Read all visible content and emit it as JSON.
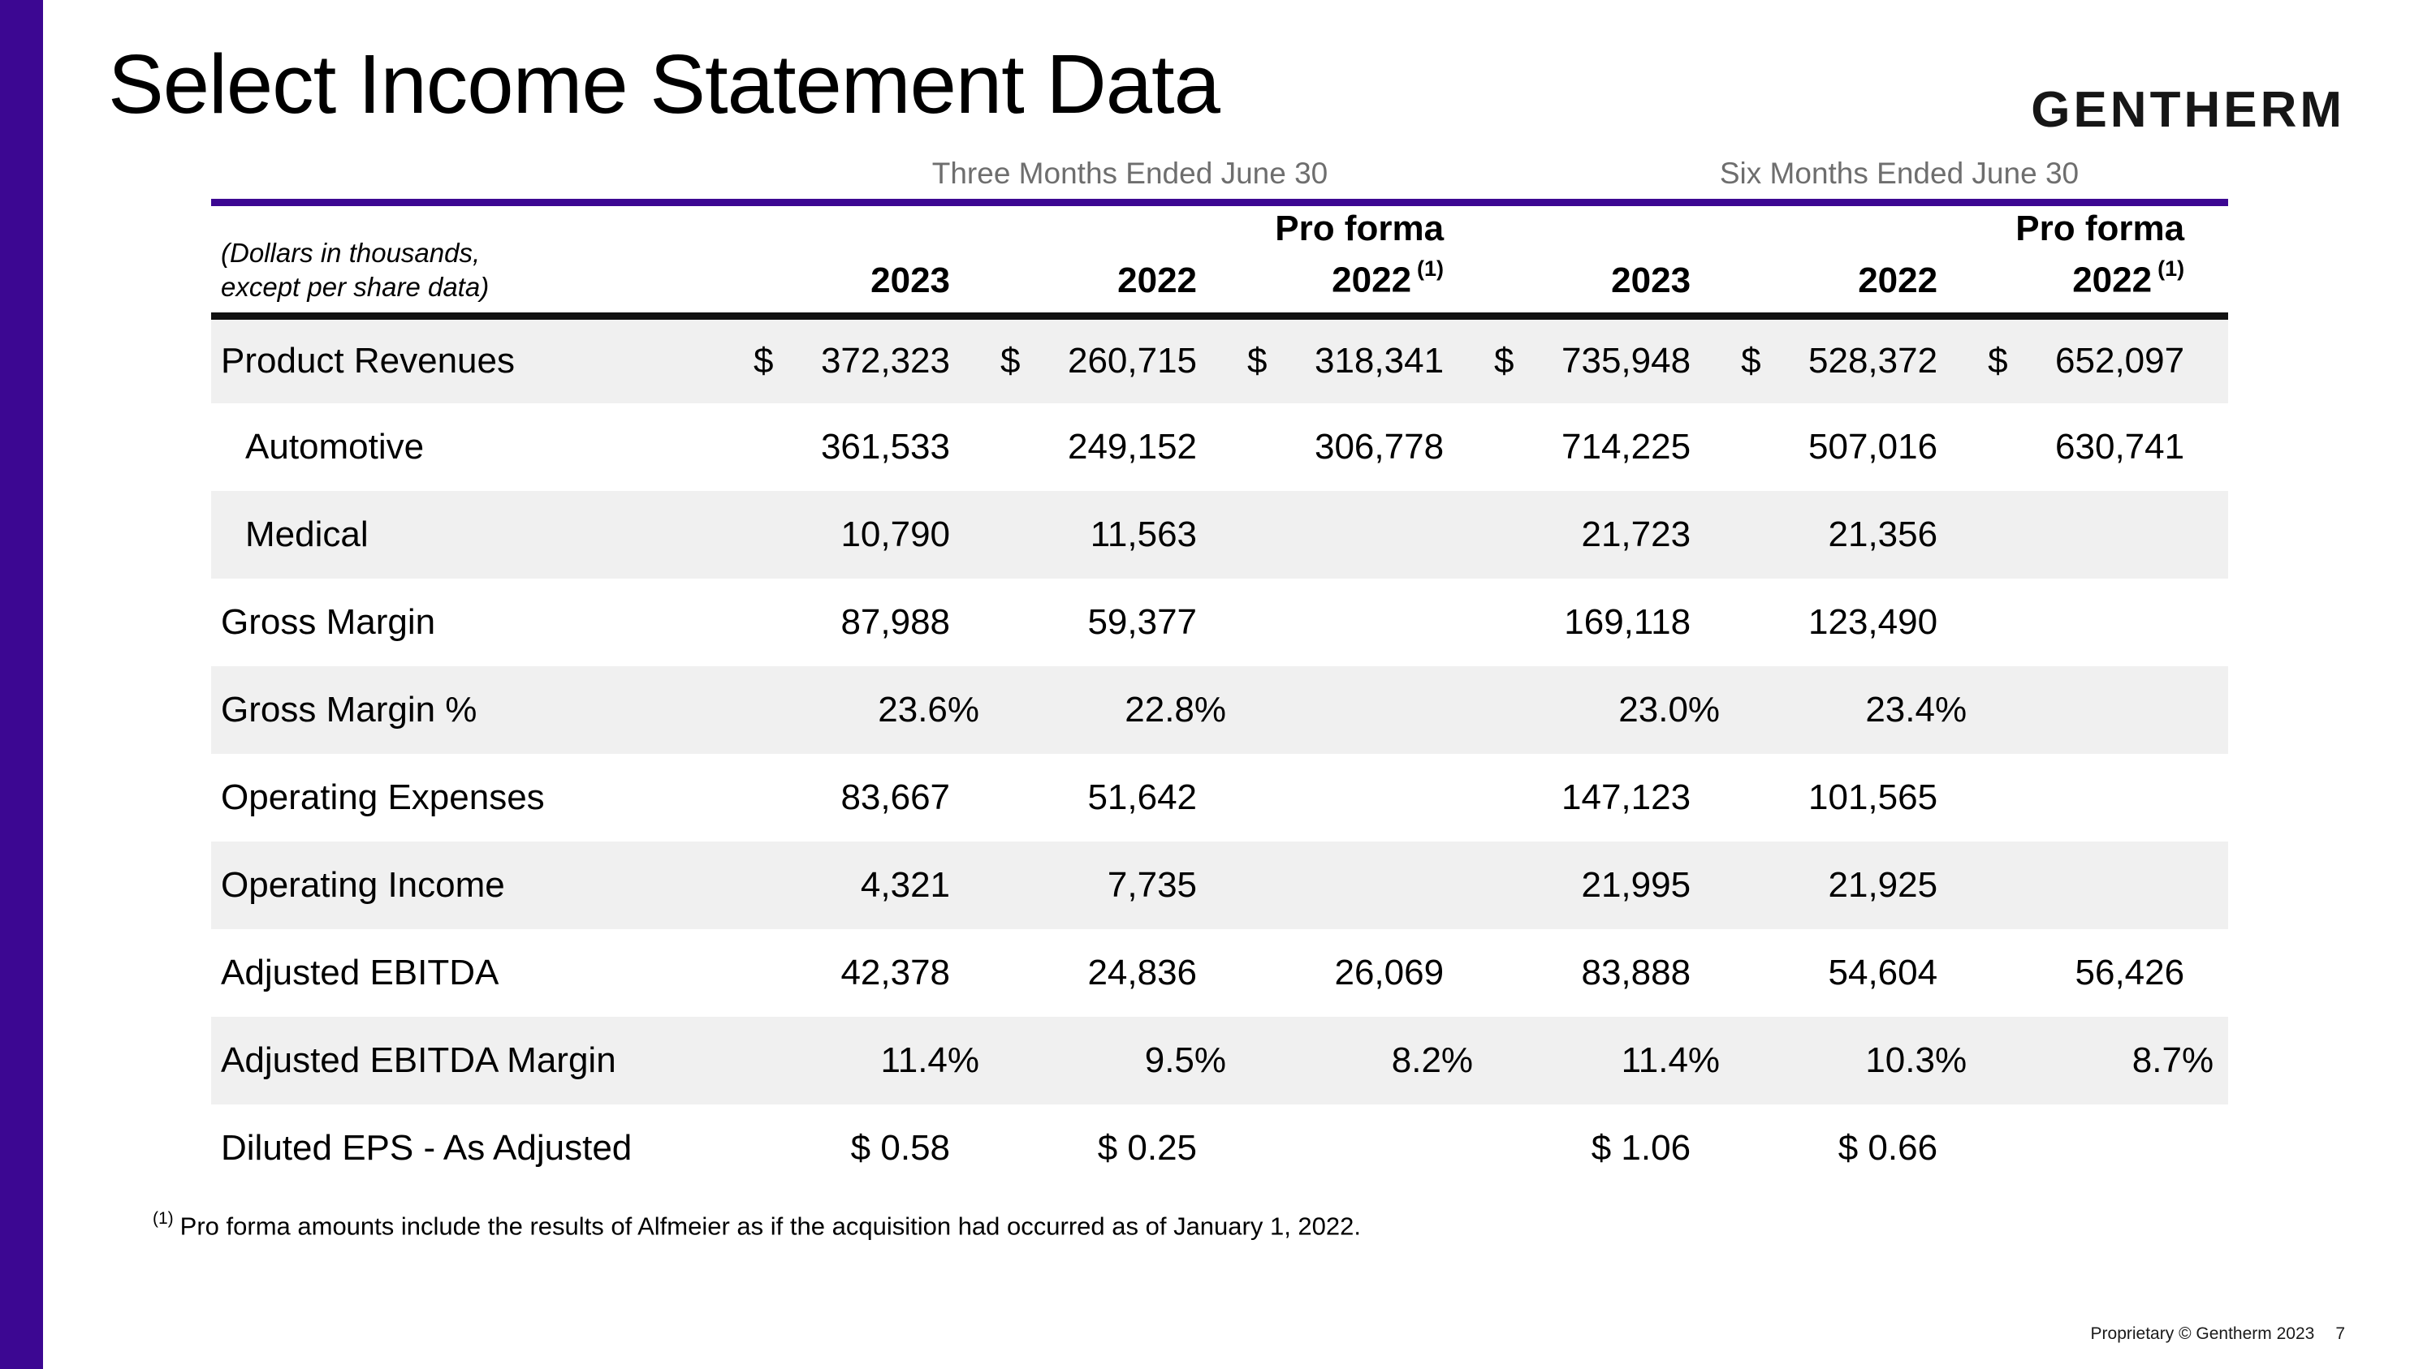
{
  "page": {
    "title": "Select Income Statement Data",
    "logo_text": "GENTHERM",
    "footnote_marker": "(1)",
    "footnote_text": "Pro forma amounts include the results of Alfmeier as if the acquisition had occurred as of January 1, 2022.",
    "footer_text": "Proprietary © Gentherm 2023",
    "footer_page": "7"
  },
  "colors": {
    "accent_purple": "#3C0792",
    "row_stripe": "#F0F0F0",
    "muted_text": "#6E6E6E"
  },
  "table": {
    "units_note_line1": "(Dollars in thousands,",
    "units_note_line2": "except per share data)",
    "group_headers": [
      {
        "label": "Three Months Ended June 30"
      },
      {
        "label": "Six Months Ended June 30"
      }
    ],
    "col_headers": [
      {
        "line1": "",
        "year": "2023",
        "sup": ""
      },
      {
        "line1": "",
        "year": "2022",
        "sup": ""
      },
      {
        "line1": "Pro forma",
        "year": "2022",
        "sup": "(1)"
      },
      {
        "line1": "",
        "year": "2023",
        "sup": ""
      },
      {
        "line1": "",
        "year": "2022",
        "sup": ""
      },
      {
        "line1": "Pro forma",
        "year": "2022",
        "sup": "(1)"
      }
    ],
    "rows": [
      {
        "label": "Product Revenues",
        "indent": false,
        "shaded": true,
        "cells": [
          {
            "dollar": "$",
            "value": "372,323"
          },
          {
            "dollar": "$",
            "value": "260,715"
          },
          {
            "dollar": "$",
            "value": "318,341"
          },
          {
            "dollar": "$",
            "value": "735,948"
          },
          {
            "dollar": "$",
            "value": "528,372"
          },
          {
            "dollar": "$",
            "value": "652,097"
          }
        ]
      },
      {
        "label": "Automotive",
        "indent": true,
        "shaded": false,
        "cells": [
          {
            "dollar": "",
            "value": "361,533"
          },
          {
            "dollar": "",
            "value": "249,152"
          },
          {
            "dollar": "",
            "value": "306,778"
          },
          {
            "dollar": "",
            "value": "714,225"
          },
          {
            "dollar": "",
            "value": "507,016"
          },
          {
            "dollar": "",
            "value": "630,741"
          }
        ]
      },
      {
        "label": "Medical",
        "indent": true,
        "shaded": true,
        "cells": [
          {
            "dollar": "",
            "value": "10,790"
          },
          {
            "dollar": "",
            "value": "11,563"
          },
          {
            "dollar": "",
            "value": ""
          },
          {
            "dollar": "",
            "value": "21,723"
          },
          {
            "dollar": "",
            "value": "21,356"
          },
          {
            "dollar": "",
            "value": ""
          }
        ]
      },
      {
        "label": "Gross Margin",
        "indent": false,
        "shaded": false,
        "cells": [
          {
            "dollar": "",
            "value": "87,988"
          },
          {
            "dollar": "",
            "value": "59,377"
          },
          {
            "dollar": "",
            "value": ""
          },
          {
            "dollar": "",
            "value": "169,118"
          },
          {
            "dollar": "",
            "value": "123,490"
          },
          {
            "dollar": "",
            "value": ""
          }
        ]
      },
      {
        "label": "Gross Margin %",
        "indent": false,
        "shaded": true,
        "cells": [
          {
            "dollar": "",
            "value": "23.6%",
            "pct": true
          },
          {
            "dollar": "",
            "value": "22.8%",
            "pct": true
          },
          {
            "dollar": "",
            "value": ""
          },
          {
            "dollar": "",
            "value": "23.0%",
            "pct": true
          },
          {
            "dollar": "",
            "value": "23.4%",
            "pct": true
          },
          {
            "dollar": "",
            "value": ""
          }
        ]
      },
      {
        "label": "Operating Expenses",
        "indent": false,
        "shaded": false,
        "cells": [
          {
            "dollar": "",
            "value": "83,667"
          },
          {
            "dollar": "",
            "value": "51,642"
          },
          {
            "dollar": "",
            "value": ""
          },
          {
            "dollar": "",
            "value": "147,123"
          },
          {
            "dollar": "",
            "value": "101,565"
          },
          {
            "dollar": "",
            "value": ""
          }
        ]
      },
      {
        "label": "Operating Income",
        "indent": false,
        "shaded": true,
        "cells": [
          {
            "dollar": "",
            "value": "4,321"
          },
          {
            "dollar": "",
            "value": "7,735"
          },
          {
            "dollar": "",
            "value": ""
          },
          {
            "dollar": "",
            "value": "21,995"
          },
          {
            "dollar": "",
            "value": "21,925"
          },
          {
            "dollar": "",
            "value": ""
          }
        ]
      },
      {
        "label": "Adjusted EBITDA",
        "indent": false,
        "shaded": false,
        "cells": [
          {
            "dollar": "",
            "value": "42,378"
          },
          {
            "dollar": "",
            "value": "24,836"
          },
          {
            "dollar": "",
            "value": "26,069"
          },
          {
            "dollar": "",
            "value": "83,888"
          },
          {
            "dollar": "",
            "value": "54,604"
          },
          {
            "dollar": "",
            "value": "56,426"
          }
        ]
      },
      {
        "label": "Adjusted EBITDA Margin",
        "indent": false,
        "shaded": true,
        "cells": [
          {
            "dollar": "",
            "value": "11.4%",
            "pct": true
          },
          {
            "dollar": "",
            "value": "9.5%",
            "pct": true
          },
          {
            "dollar": "",
            "value": "8.2%",
            "pct": true
          },
          {
            "dollar": "",
            "value": "11.4%",
            "pct": true
          },
          {
            "dollar": "",
            "value": "10.3%",
            "pct": true
          },
          {
            "dollar": "",
            "value": "8.7%",
            "pct": true
          }
        ]
      },
      {
        "label": "Diluted EPS - As Adjusted",
        "indent": false,
        "shaded": false,
        "cells": [
          {
            "dollar": "",
            "value": "$ 0.58"
          },
          {
            "dollar": "",
            "value": "$ 0.25"
          },
          {
            "dollar": "",
            "value": ""
          },
          {
            "dollar": "",
            "value": "$ 1.06"
          },
          {
            "dollar": "",
            "value": "$ 0.66"
          },
          {
            "dollar": "",
            "value": ""
          }
        ]
      }
    ]
  }
}
